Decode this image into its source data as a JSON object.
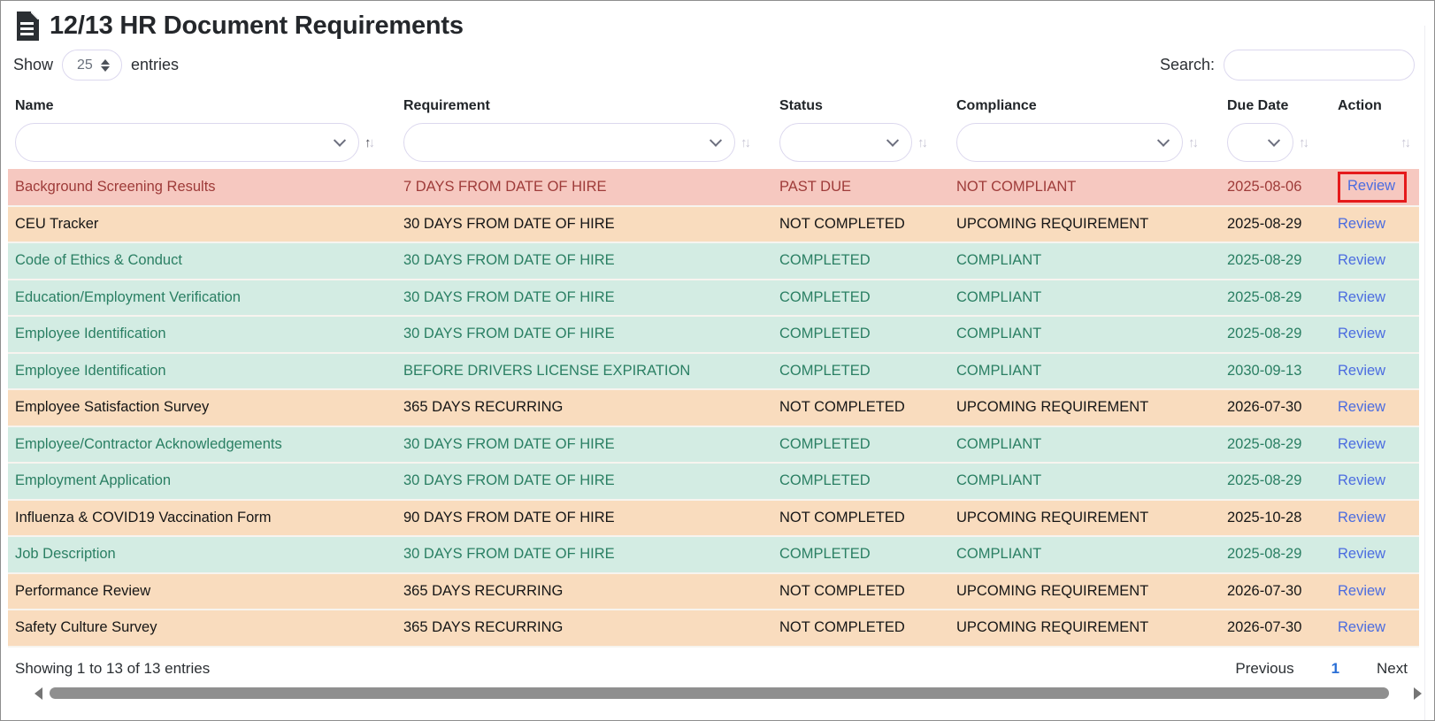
{
  "page": {
    "title": "12/13 HR Document Requirements",
    "icon": "document-icon"
  },
  "length_menu": {
    "show_label": "Show",
    "selected_value": "25",
    "entries_label": "entries"
  },
  "search": {
    "label": "Search:",
    "value": "",
    "placeholder": ""
  },
  "table": {
    "columns": [
      {
        "label": "Name",
        "sort": "asc",
        "filter": true
      },
      {
        "label": "Requirement",
        "sort": "none",
        "filter": true
      },
      {
        "label": "Status",
        "sort": "none",
        "filter": true
      },
      {
        "label": "Compliance",
        "sort": "none",
        "filter": true
      },
      {
        "label": "Due Date",
        "sort": "none",
        "filter": true
      },
      {
        "label": "Action",
        "sort": "none",
        "filter": false
      }
    ],
    "rows": [
      {
        "name": "Background Screening Results",
        "requirement": "7 DAYS FROM DATE OF HIRE",
        "status": "PAST DUE",
        "compliance": "NOT COMPLIANT",
        "due_date": "2025-08-06",
        "action": "Review",
        "state": "past-due",
        "highlighted": true
      },
      {
        "name": "CEU Tracker",
        "requirement": "30 DAYS FROM DATE OF HIRE",
        "status": "NOT COMPLETED",
        "compliance": "UPCOMING REQUIREMENT",
        "due_date": "2025-08-29",
        "action": "Review",
        "state": "upcoming",
        "highlighted": false
      },
      {
        "name": "Code of Ethics & Conduct",
        "requirement": "30 DAYS FROM DATE OF HIRE",
        "status": "COMPLETED",
        "compliance": "COMPLIANT",
        "due_date": "2025-08-29",
        "action": "Review",
        "state": "compliant",
        "highlighted": false
      },
      {
        "name": "Education/Employment Verification",
        "requirement": "30 DAYS FROM DATE OF HIRE",
        "status": "COMPLETED",
        "compliance": "COMPLIANT",
        "due_date": "2025-08-29",
        "action": "Review",
        "state": "compliant",
        "highlighted": false
      },
      {
        "name": "Employee Identification",
        "requirement": "30 DAYS FROM DATE OF HIRE",
        "status": "COMPLETED",
        "compliance": "COMPLIANT",
        "due_date": "2025-08-29",
        "action": "Review",
        "state": "compliant",
        "highlighted": false
      },
      {
        "name": "Employee Identification",
        "requirement": "BEFORE DRIVERS LICENSE EXPIRATION",
        "status": "COMPLETED",
        "compliance": "COMPLIANT",
        "due_date": "2030-09-13",
        "action": "Review",
        "state": "compliant",
        "highlighted": false
      },
      {
        "name": "Employee Satisfaction Survey",
        "requirement": "365 DAYS RECURRING",
        "status": "NOT COMPLETED",
        "compliance": "UPCOMING REQUIREMENT",
        "due_date": "2026-07-30",
        "action": "Review",
        "state": "upcoming",
        "highlighted": false
      },
      {
        "name": "Employee/Contractor Acknowledgements",
        "requirement": "30 DAYS FROM DATE OF HIRE",
        "status": "COMPLETED",
        "compliance": "COMPLIANT",
        "due_date": "2025-08-29",
        "action": "Review",
        "state": "compliant",
        "highlighted": false
      },
      {
        "name": "Employment Application",
        "requirement": "30 DAYS FROM DATE OF HIRE",
        "status": "COMPLETED",
        "compliance": "COMPLIANT",
        "due_date": "2025-08-29",
        "action": "Review",
        "state": "compliant",
        "highlighted": false
      },
      {
        "name": "Influenza & COVID19 Vaccination Form",
        "requirement": "90 DAYS FROM DATE OF HIRE",
        "status": "NOT COMPLETED",
        "compliance": "UPCOMING REQUIREMENT",
        "due_date": "2025-10-28",
        "action": "Review",
        "state": "upcoming",
        "highlighted": false
      },
      {
        "name": "Job Description",
        "requirement": "30 DAYS FROM DATE OF HIRE",
        "status": "COMPLETED",
        "compliance": "COMPLIANT",
        "due_date": "2025-08-29",
        "action": "Review",
        "state": "compliant",
        "highlighted": false
      },
      {
        "name": "Performance Review",
        "requirement": "365 DAYS RECURRING",
        "status": "NOT COMPLETED",
        "compliance": "UPCOMING REQUIREMENT",
        "due_date": "2026-07-30",
        "action": "Review",
        "state": "upcoming",
        "highlighted": false
      },
      {
        "name": "Safety Culture Survey",
        "requirement": "365 DAYS RECURRING",
        "status": "NOT COMPLETED",
        "compliance": "UPCOMING REQUIREMENT",
        "due_date": "2026-07-30",
        "action": "Review",
        "state": "upcoming",
        "highlighted": false
      }
    ]
  },
  "footer": {
    "info": "Showing 1 to 13 of 13 entries",
    "pagination": {
      "previous_label": "Previous",
      "current_page": "1",
      "next_label": "Next"
    }
  },
  "colors": {
    "past_due_bg": "#f6c8c0",
    "past_due_text": "#9e3b39",
    "upcoming_bg": "#f9dcbe",
    "upcoming_text": "#161616",
    "compliant_bg": "#d3ece3",
    "compliant_text": "#2a7f63",
    "link_blue": "#4b6ce0",
    "highlight_box_red": "#e51a1c",
    "active_page_blue": "#2a6fd6"
  }
}
